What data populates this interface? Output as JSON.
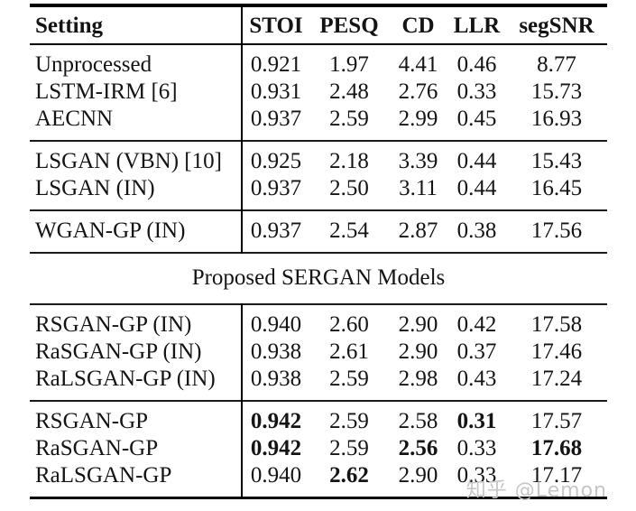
{
  "table": {
    "columns": [
      "Setting",
      "STOI",
      "PESQ",
      "CD",
      "LLR",
      "segSNR"
    ],
    "sections": [
      {
        "rows": [
          {
            "setting": "Unprocessed",
            "values": [
              "0.921",
              "1.97",
              "4.41",
              "0.46",
              "8.77"
            ],
            "bold": []
          },
          {
            "setting": "LSTM-IRM [6]",
            "values": [
              "0.931",
              "2.48",
              "2.76",
              "0.33",
              "15.73"
            ],
            "bold": []
          },
          {
            "setting": "AECNN",
            "values": [
              "0.937",
              "2.59",
              "2.99",
              "0.45",
              "16.93"
            ],
            "bold": []
          }
        ]
      },
      {
        "rows": [
          {
            "setting": "LSGAN (VBN) [10]",
            "values": [
              "0.925",
              "2.18",
              "3.39",
              "0.44",
              "15.43"
            ],
            "bold": []
          },
          {
            "setting": "LSGAN (IN)",
            "values": [
              "0.937",
              "2.50",
              "3.11",
              "0.44",
              "16.45"
            ],
            "bold": []
          }
        ]
      },
      {
        "rows": [
          {
            "setting": "WGAN-GP (IN)",
            "values": [
              "0.937",
              "2.54",
              "2.87",
              "0.38",
              "17.56"
            ],
            "bold": []
          }
        ]
      },
      {
        "span_title": "Proposed SERGAN Models"
      },
      {
        "rows": [
          {
            "setting": "RSGAN-GP (IN)",
            "values": [
              "0.940",
              "2.60",
              "2.90",
              "0.42",
              "17.58"
            ],
            "bold": []
          },
          {
            "setting": "RaSGAN-GP (IN)",
            "values": [
              "0.938",
              "2.61",
              "2.90",
              "0.37",
              "17.46"
            ],
            "bold": []
          },
          {
            "setting": "RaLSGAN-GP (IN)",
            "values": [
              "0.938",
              "2.59",
              "2.98",
              "0.43",
              "17.24"
            ],
            "bold": []
          }
        ]
      },
      {
        "rows": [
          {
            "setting": "RSGAN-GP",
            "values": [
              "0.942",
              "2.59",
              "2.58",
              "0.31",
              "17.57"
            ],
            "bold": [
              0,
              3
            ]
          },
          {
            "setting": "RaSGAN-GP",
            "values": [
              "0.942",
              "2.59",
              "2.56",
              "0.33",
              "17.68"
            ],
            "bold": [
              0,
              2,
              4
            ]
          },
          {
            "setting": "RaLSGAN-GP",
            "values": [
              "0.940",
              "2.62",
              "2.90",
              "0.33",
              "17.17"
            ],
            "bold": [
              1
            ]
          }
        ]
      }
    ]
  },
  "watermark": {
    "text": "知乎 @Lemon"
  }
}
